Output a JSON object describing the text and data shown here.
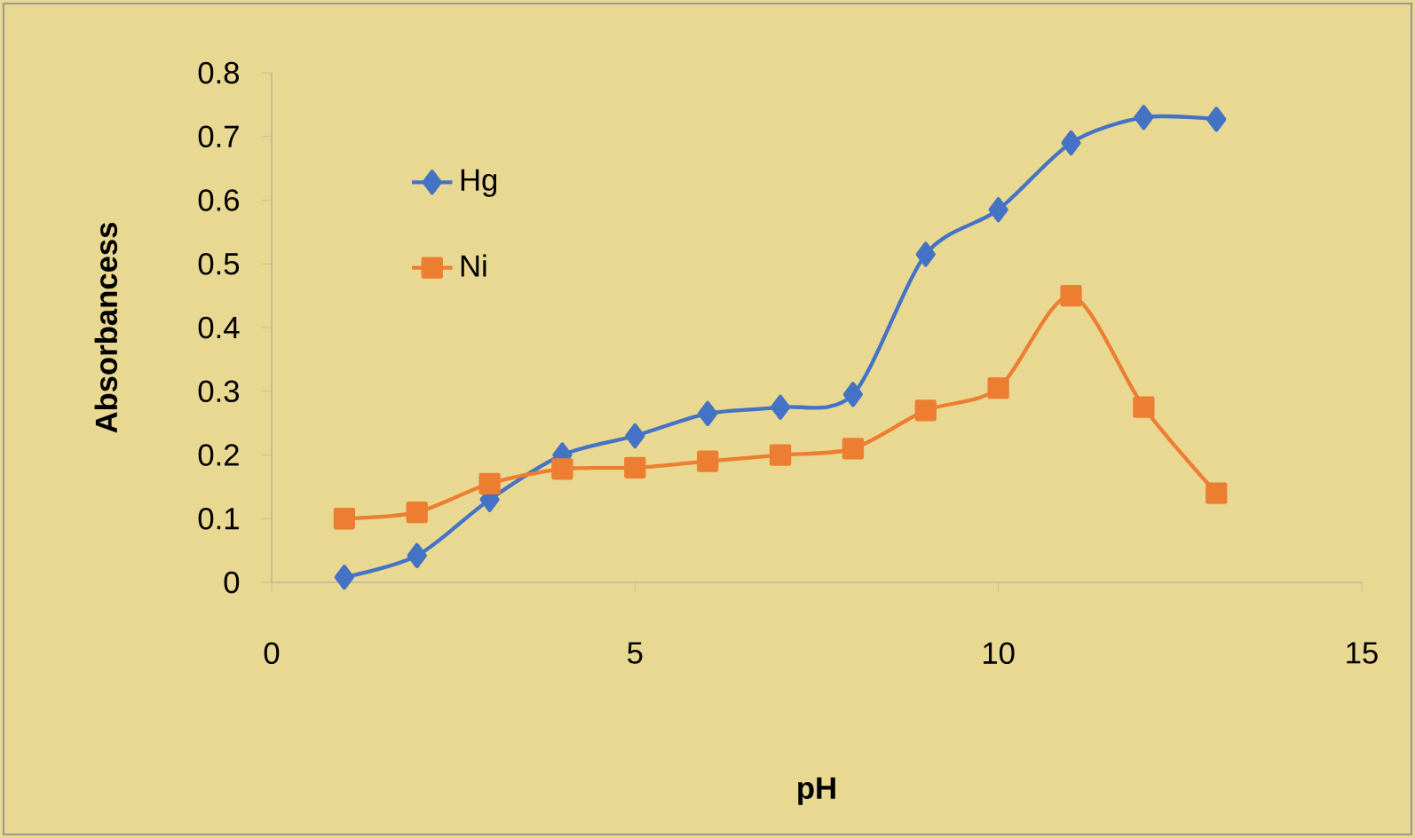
{
  "chart_data": {
    "type": "line",
    "xlabel": "pH",
    "ylabel": "Absorbancess",
    "x": [
      1,
      2,
      3,
      4,
      5,
      6,
      7,
      8,
      9,
      10,
      11,
      12,
      13
    ],
    "series": [
      {
        "name": "Hg",
        "color": "#4472c4",
        "marker": "diamond",
        "values": [
          0.008,
          0.042,
          0.13,
          0.2,
          0.23,
          0.265,
          0.275,
          0.295,
          0.515,
          0.585,
          0.69,
          0.73,
          0.727
        ]
      },
      {
        "name": "Ni",
        "color": "#ed7d31",
        "marker": "square",
        "values": [
          0.1,
          0.11,
          0.155,
          0.178,
          0.18,
          0.19,
          0.2,
          0.21,
          0.27,
          0.305,
          0.45,
          0.275,
          0.14
        ]
      }
    ],
    "xlim": [
      0,
      15
    ],
    "xticks": [
      0,
      5,
      10,
      15
    ],
    "ylim": [
      0,
      0.8
    ],
    "yticks": [
      0,
      0.1,
      0.2,
      0.3,
      0.4,
      0.5,
      0.6,
      0.7,
      0.8
    ],
    "grid": false,
    "legend": "top left",
    "line_style": "solid"
  }
}
